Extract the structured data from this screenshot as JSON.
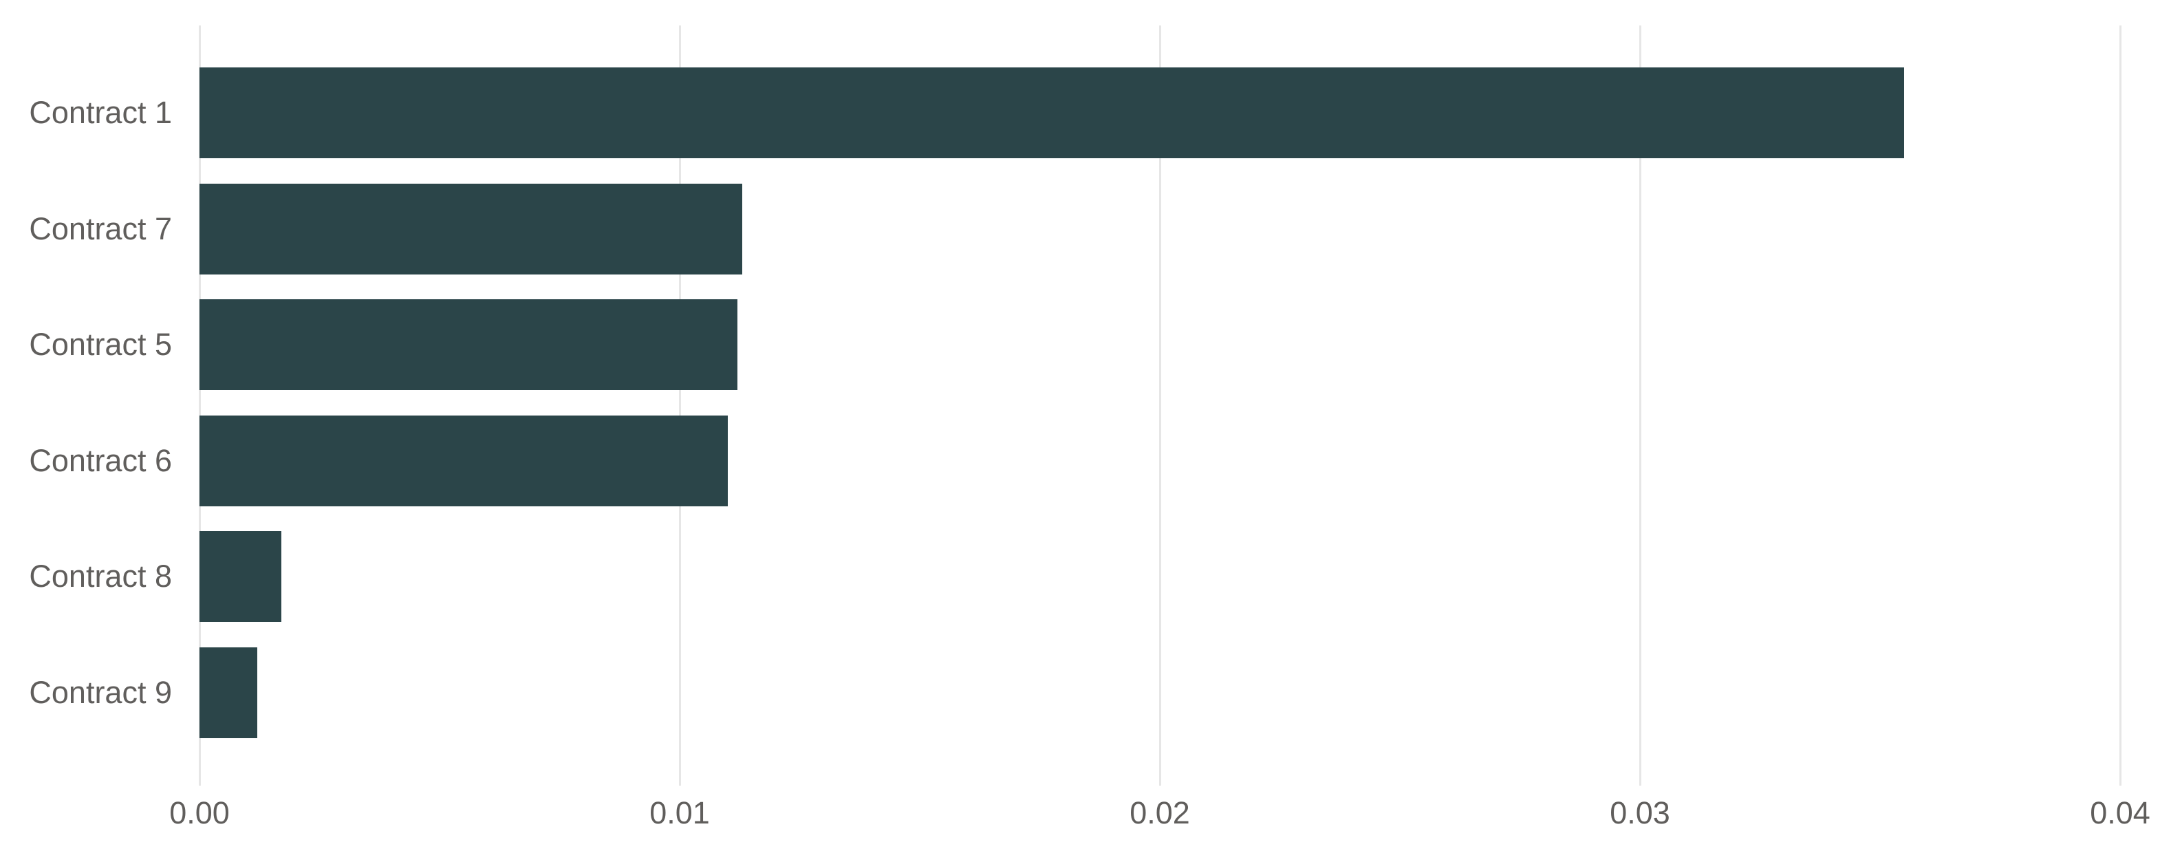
{
  "chart_data": {
    "type": "bar",
    "orientation": "horizontal",
    "categories": [
      "Contract 1",
      "Contract 7",
      "Contract 5",
      "Contract 6",
      "Contract 8",
      "Contract 9"
    ],
    "values": [
      0.0355,
      0.0113,
      0.0112,
      0.011,
      0.0017,
      0.0012
    ],
    "x_tick_labels": [
      "0.00",
      "0.01",
      "0.02",
      "0.03",
      "0.04"
    ],
    "xlim": [
      0,
      0.04
    ],
    "grid": "vertical-gridlines-only",
    "legend": "none",
    "sort": "descending-by-value",
    "colors": {
      "bar": "#2b4549",
      "axis_label": "#605e5c",
      "gridline": "#e6e6e6",
      "background": "#ffffff"
    }
  }
}
